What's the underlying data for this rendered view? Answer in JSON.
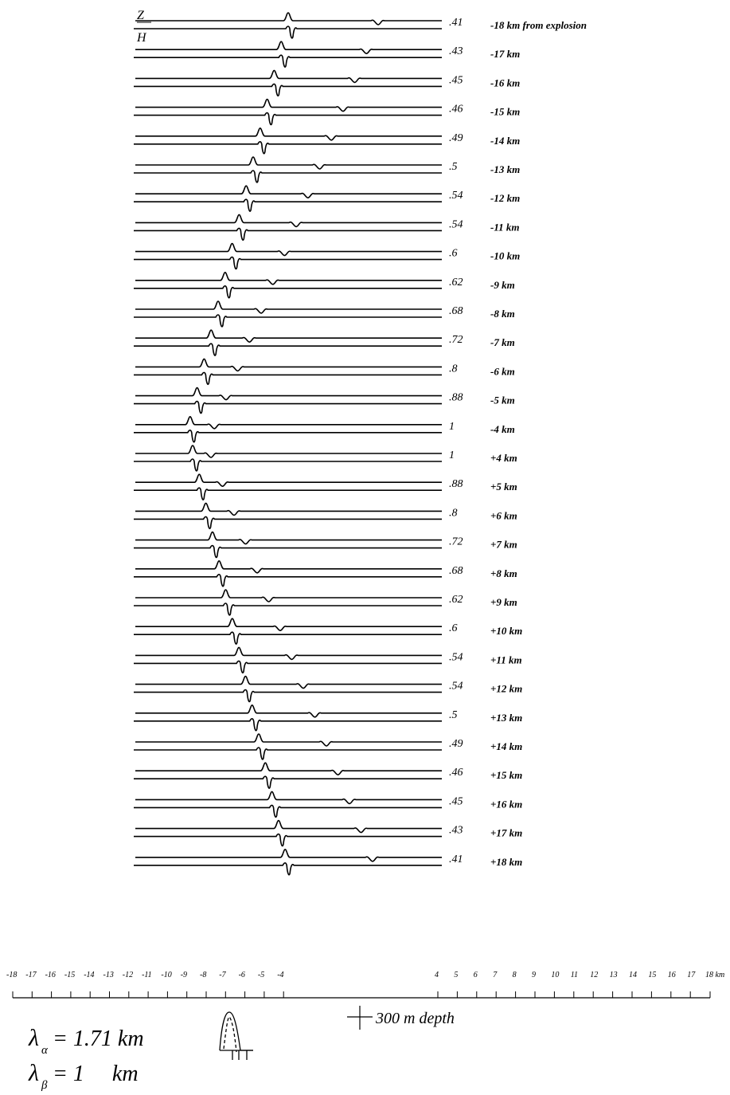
{
  "component_labels": {
    "vertical": "Z",
    "horizontal": "H"
  },
  "traces": [
    {
      "amplitude": ".41",
      "distance": "-18 km from explosion"
    },
    {
      "amplitude": ".43",
      "distance": "-17 km"
    },
    {
      "amplitude": ".45",
      "distance": "-16 km"
    },
    {
      "amplitude": ".46",
      "distance": "-15 km"
    },
    {
      "amplitude": ".49",
      "distance": "-14 km"
    },
    {
      "amplitude": ".5",
      "distance": "-13 km"
    },
    {
      "amplitude": ".54",
      "distance": "-12 km"
    },
    {
      "amplitude": ".54",
      "distance": "-11 km"
    },
    {
      "amplitude": ".6",
      "distance": "-10 km"
    },
    {
      "amplitude": ".62",
      "distance": "-9 km"
    },
    {
      "amplitude": ".68",
      "distance": "-8 km"
    },
    {
      "amplitude": ".72",
      "distance": "-7 km"
    },
    {
      "amplitude": ".8",
      "distance": "-6 km"
    },
    {
      "amplitude": ".88",
      "distance": "-5 km"
    },
    {
      "amplitude": "1",
      "distance": "-4 km"
    },
    {
      "amplitude": "1",
      "distance": "+4 km"
    },
    {
      "amplitude": ".88",
      "distance": "+5 km"
    },
    {
      "amplitude": ".8",
      "distance": "+6 km"
    },
    {
      "amplitude": ".72",
      "distance": "+7 km"
    },
    {
      "amplitude": ".68",
      "distance": "+8 km"
    },
    {
      "amplitude": ".62",
      "distance": "+9 km"
    },
    {
      "amplitude": ".6",
      "distance": "+10 km"
    },
    {
      "amplitude": ".54",
      "distance": "+11 km"
    },
    {
      "amplitude": ".54",
      "distance": "+12 km"
    },
    {
      "amplitude": ".5",
      "distance": "+13 km"
    },
    {
      "amplitude": ".49",
      "distance": "+14 km"
    },
    {
      "amplitude": ".46",
      "distance": "+15 km"
    },
    {
      "amplitude": ".45",
      "distance": "+16 km"
    },
    {
      "amplitude": ".43",
      "distance": "+17 km"
    },
    {
      "amplitude": ".41",
      "distance": "+18 km"
    }
  ],
  "scale": {
    "left_ticks": [
      "-18",
      "-17",
      "-16",
      "-15",
      "-14",
      "-13",
      "-12",
      "-11",
      "-10",
      "-9",
      "-8",
      "-7",
      "-6",
      "-5",
      "-4"
    ],
    "right_ticks": [
      "4",
      "5",
      "6",
      "7",
      "8",
      "9",
      "10",
      "11",
      "12",
      "13",
      "14",
      "15",
      "16",
      "17"
    ],
    "end_label": "18 km",
    "source_marker_label": "300 m depth"
  },
  "wavelengths": {
    "alpha": {
      "symbol": "λ",
      "subscript": "α",
      "text": "= 1.71 km"
    },
    "beta": {
      "symbol": "λ",
      "subscript": "β",
      "text": "= 1     km"
    }
  }
}
